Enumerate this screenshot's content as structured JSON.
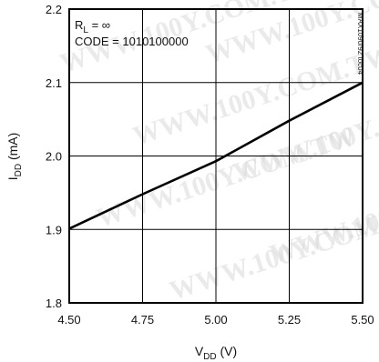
{
  "chart_data": {
    "type": "line",
    "title": "",
    "xlabel": {
      "main": "V",
      "sub": "DD",
      "unit": " (V)"
    },
    "ylabel": {
      "main": "I",
      "sub": "DD",
      "unit": " (mA)"
    },
    "xlim": [
      4.5,
      5.5
    ],
    "ylim": [
      1.8,
      2.2
    ],
    "xticks": [
      4.5,
      4.75,
      5.0,
      5.25,
      5.5
    ],
    "xtick_labels": [
      "4.50",
      "4.75",
      "5.00",
      "5.25",
      "5.50"
    ],
    "yticks": [
      1.8,
      1.9,
      2.0,
      2.1,
      2.2
    ],
    "ytick_labels": [
      "1.8",
      "1.9",
      "2.0",
      "2.1",
      "2.2"
    ],
    "grid": true,
    "annotations": {
      "rl": {
        "main": "R",
        "sub": "L",
        "rest": " = ∞"
      },
      "code": "CODE = 1010100000"
    },
    "side_text": "MAX1090/92 toc04",
    "watermark": "WWW.100Y.COM.TW",
    "series": [
      {
        "x": [
          4.5,
          4.75,
          5.0,
          5.25,
          5.5
        ],
        "y": [
          1.901,
          1.948,
          1.993,
          2.048,
          2.1
        ]
      }
    ]
  }
}
